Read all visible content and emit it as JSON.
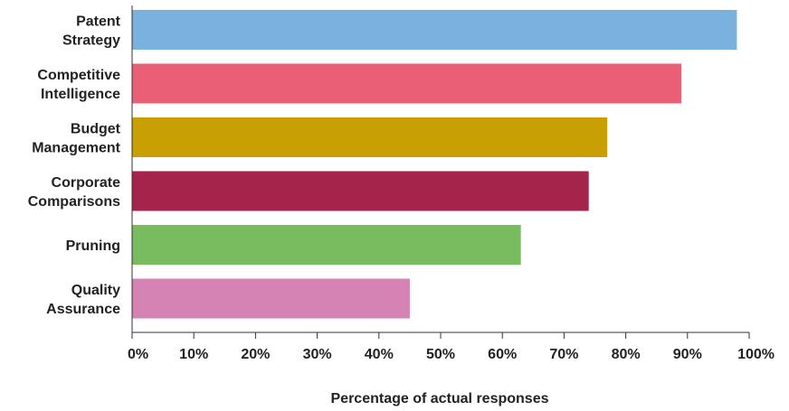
{
  "chart_data": {
    "type": "bar",
    "orientation": "horizontal",
    "categories": [
      [
        "Patent",
        "Strategy"
      ],
      [
        "Competitive",
        "Intelligence"
      ],
      [
        "Budget",
        "Management"
      ],
      [
        "Corporate",
        "Comparisons"
      ],
      [
        "Pruning"
      ],
      [
        "Quality",
        "Assurance"
      ]
    ],
    "values": [
      98,
      89,
      77,
      74,
      63,
      45
    ],
    "colors": [
      "#79b1df",
      "#e95f76",
      "#c9a004",
      "#a4244c",
      "#79bc5f",
      "#d582b5"
    ],
    "title": "",
    "xlabel": "Percentage of actual responses",
    "ylabel": "",
    "xlim": [
      0,
      100
    ],
    "xticks": [
      "0%",
      "10%",
      "20%",
      "30%",
      "40%",
      "50%",
      "60%",
      "70%",
      "80%",
      "90%",
      "100%"
    ],
    "grid": false,
    "legend": "none"
  }
}
